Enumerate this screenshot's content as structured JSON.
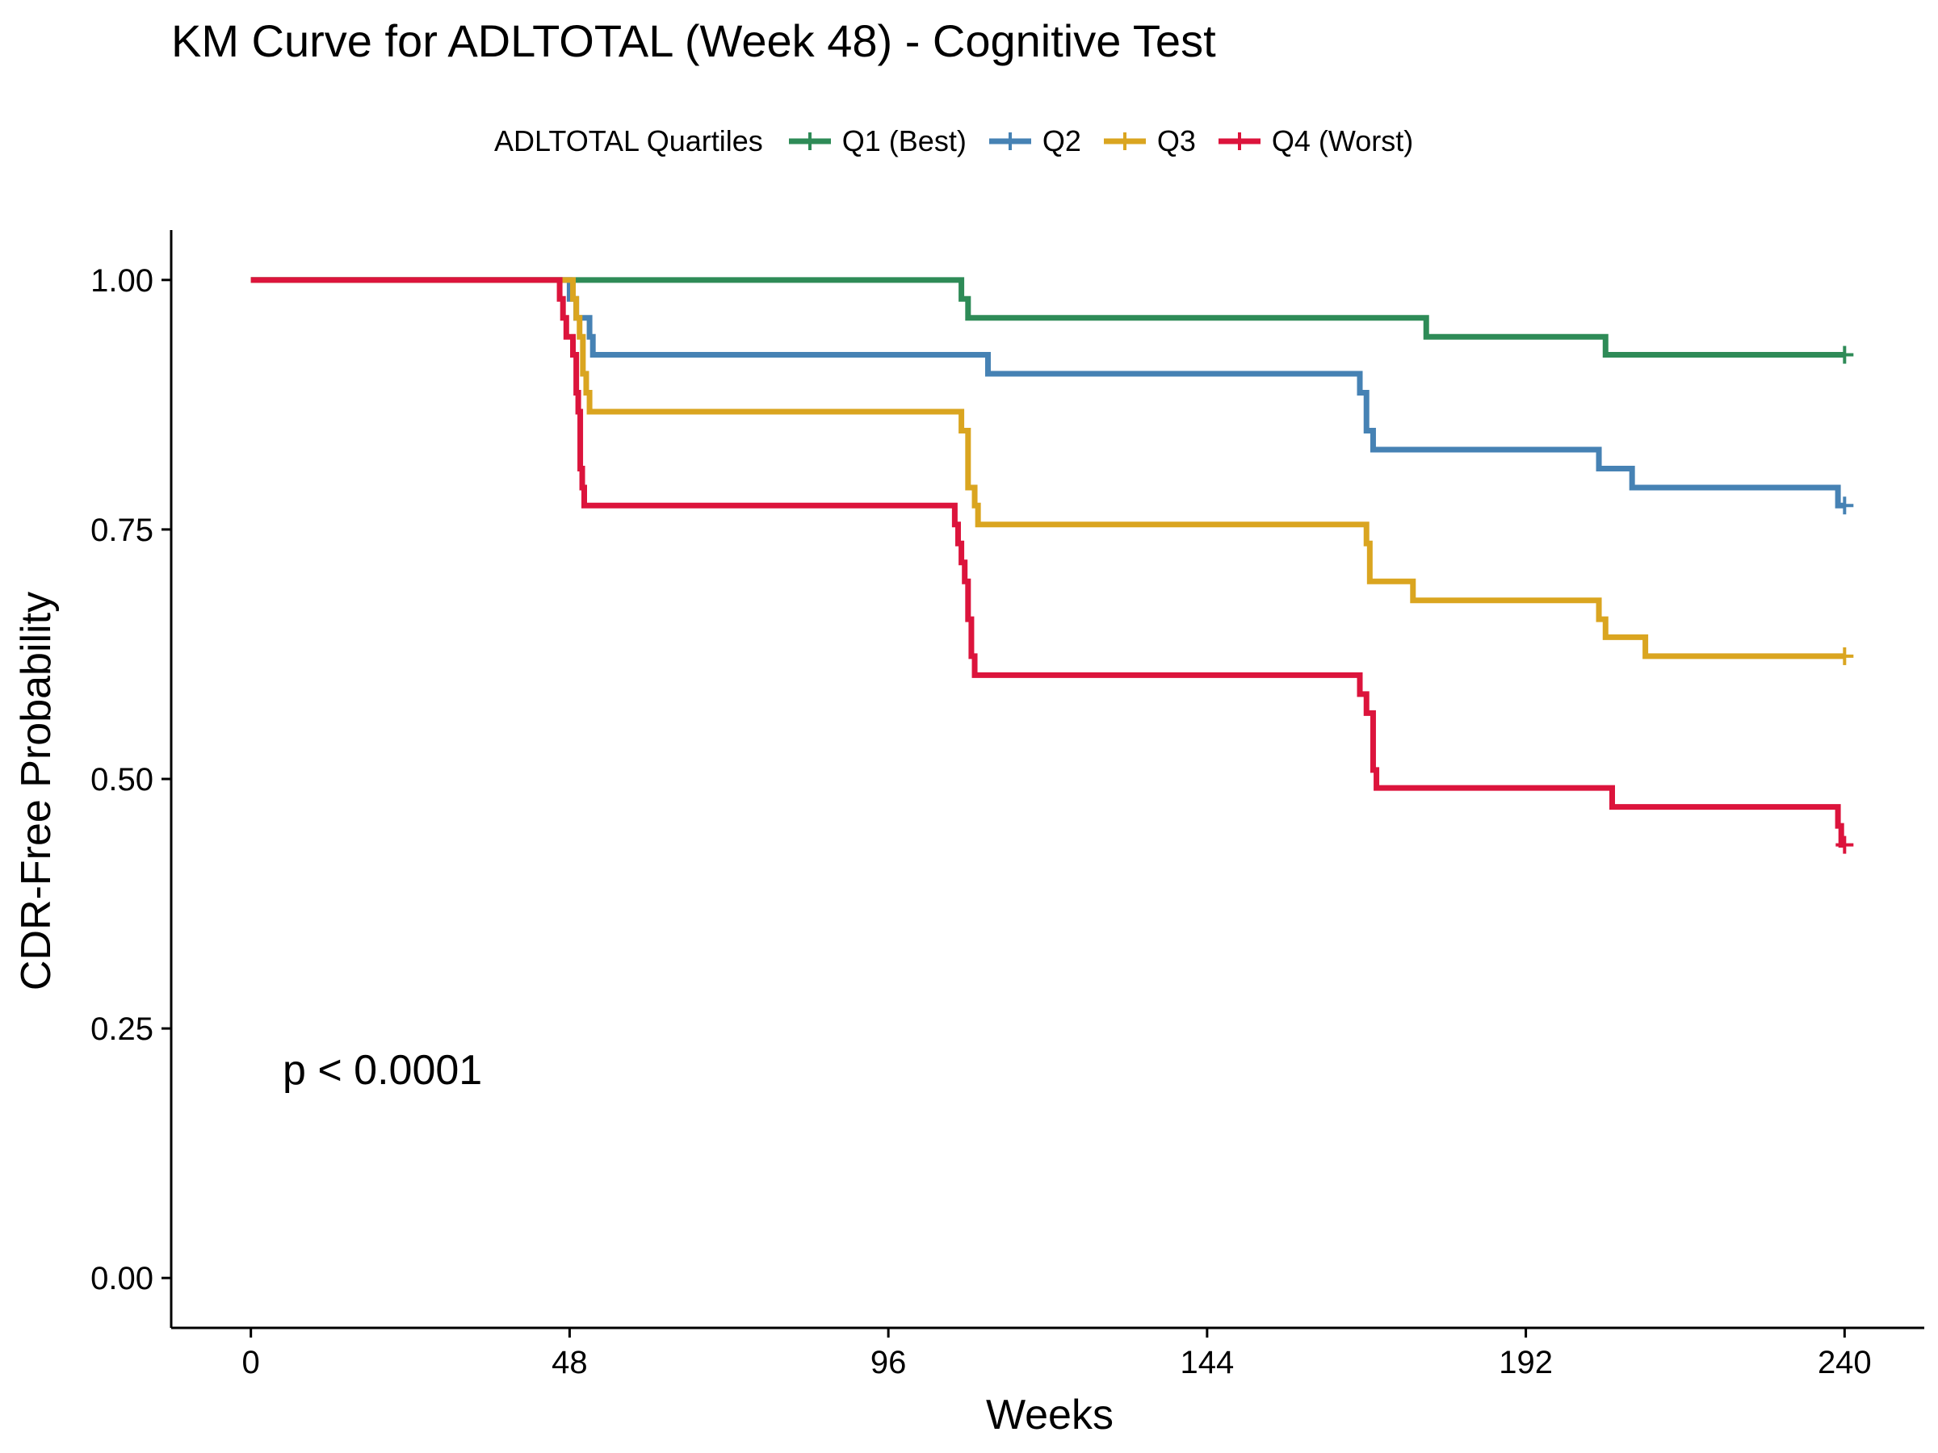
{
  "chart_data": {
    "type": "line",
    "subtype": "kaplan-meier step",
    "title": "KM Curve for ADLTOTAL (Week 48) - Cognitive Test",
    "xlabel": "Weeks",
    "ylabel": "CDR-Free Probability",
    "xlim": [
      -12,
      252
    ],
    "ylim": [
      -0.05,
      1.05
    ],
    "xticks": [
      "0",
      "48",
      "96",
      "144",
      "192",
      "240"
    ],
    "yticks": [
      "0.00",
      "0.25",
      "0.50",
      "0.75",
      "1.00"
    ],
    "grid": false,
    "legend": {
      "title": "ADLTOTAL Quartiles",
      "position": "top"
    },
    "annotation": "p < 0.0001",
    "series": [
      {
        "name": "Q1 (Best)",
        "color": "#2E8B57",
        "steps": [
          [
            0,
            1.0
          ],
          [
            107,
            0.981
          ],
          [
            108,
            0.962
          ],
          [
            177,
            0.943
          ],
          [
            204,
            0.925
          ]
        ],
        "censor": [
          [
            240,
            0.925
          ]
        ]
      },
      {
        "name": "Q2",
        "color": "#4682B4",
        "steps": [
          [
            0,
            1.0
          ],
          [
            48,
            0.981
          ],
          [
            49,
            0.962
          ],
          [
            51,
            0.943
          ],
          [
            51.5,
            0.925
          ],
          [
            111,
            0.906
          ],
          [
            167,
            0.887
          ],
          [
            168,
            0.849
          ],
          [
            169,
            0.83
          ],
          [
            203,
            0.811
          ],
          [
            208,
            0.792
          ],
          [
            239,
            0.774
          ]
        ],
        "censor": [
          [
            240,
            0.774
          ]
        ]
      },
      {
        "name": "Q3",
        "color": "#DAA520",
        "steps": [
          [
            0,
            1.0
          ],
          [
            48.5,
            0.981
          ],
          [
            49,
            0.962
          ],
          [
            49.5,
            0.943
          ],
          [
            50,
            0.906
          ],
          [
            50.5,
            0.887
          ],
          [
            51,
            0.868
          ],
          [
            107,
            0.849
          ],
          [
            108,
            0.792
          ],
          [
            109,
            0.774
          ],
          [
            109.5,
            0.755
          ],
          [
            168,
            0.736
          ],
          [
            168.5,
            0.698
          ],
          [
            175,
            0.679
          ],
          [
            203,
            0.66
          ],
          [
            204,
            0.642
          ],
          [
            210,
            0.623
          ]
        ],
        "censor": [
          [
            240,
            0.623
          ]
        ]
      },
      {
        "name": "Q4 (Worst)",
        "color": "#DC143C",
        "steps": [
          [
            0,
            1.0
          ],
          [
            46.5,
            0.981
          ],
          [
            47,
            0.962
          ],
          [
            47.5,
            0.943
          ],
          [
            48.5,
            0.925
          ],
          [
            49,
            0.887
          ],
          [
            49.3,
            0.868
          ],
          [
            49.6,
            0.811
          ],
          [
            49.9,
            0.792
          ],
          [
            50.2,
            0.774
          ],
          [
            106,
            0.755
          ],
          [
            106.5,
            0.736
          ],
          [
            107,
            0.717
          ],
          [
            107.5,
            0.698
          ],
          [
            108,
            0.66
          ],
          [
            108.5,
            0.623
          ],
          [
            109,
            0.604
          ],
          [
            167,
            0.585
          ],
          [
            168,
            0.566
          ],
          [
            169,
            0.509
          ],
          [
            169.5,
            0.491
          ],
          [
            205,
            0.472
          ],
          [
            239,
            0.453
          ],
          [
            239.5,
            0.434
          ]
        ],
        "censor": [
          [
            240,
            0.434
          ]
        ]
      }
    ]
  }
}
